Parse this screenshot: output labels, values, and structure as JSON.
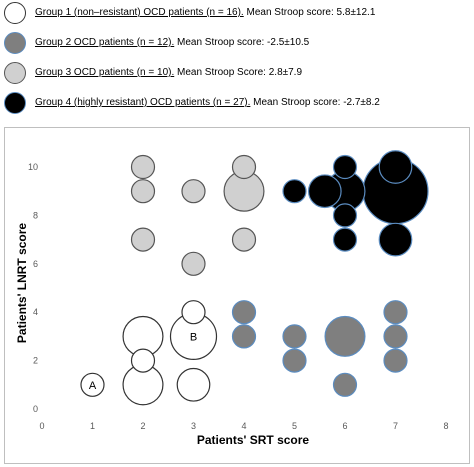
{
  "legend": [
    {
      "group": "Group 1 (non–resistant) OCD patients (n = 16).",
      "stat": " Mean Stroop score:  5.8±12.1",
      "fill": "#ffffff",
      "stroke": "#333333"
    },
    {
      "group": "Group 2 OCD patients (n = 12).",
      "stat": " Mean Stroop score: -2.5±10.5",
      "fill": "#7f7f7f",
      "stroke": "#5b8cc0"
    },
    {
      "group": "Group 3 OCD patients (n = 10).",
      "stat": " Mean Stroop Score: 2.8±7.9",
      "fill": "#d0d0d0",
      "stroke": "#555555"
    },
    {
      "group": "Group 4 (highly resistant) OCD patients (n = 27).",
      "stat": " Mean Stroop score: -2.7±8.2",
      "fill": "#000000",
      "stroke": "#5b8cc0"
    }
  ],
  "chart_data": {
    "type": "scatter",
    "subtype": "bubble",
    "xlabel": "Patients' SRT score",
    "ylabel": "Patients' LNRT score",
    "xlim": [
      0,
      8
    ],
    "ylim": [
      0,
      11
    ],
    "xticks": [
      "0",
      "1",
      "2",
      "3",
      "4",
      "5",
      "6",
      "7",
      "8"
    ],
    "yticks": [
      "0",
      "2",
      "4",
      "6",
      "8",
      "10"
    ],
    "grid": false,
    "annotations": [
      {
        "text": "A",
        "x": 1,
        "y": 1
      },
      {
        "text": "B",
        "x": 3,
        "y": 3
      }
    ],
    "series": [
      {
        "name": "Group 1",
        "fill": "#ffffff",
        "stroke": "#333333",
        "points": [
          {
            "x": 1,
            "y": 1,
            "size": 1
          },
          {
            "x": 2,
            "y": 1,
            "size": 3
          },
          {
            "x": 2,
            "y": 2,
            "size": 1
          },
          {
            "x": 2,
            "y": 3,
            "size": 3
          },
          {
            "x": 3,
            "y": 1,
            "size": 2
          },
          {
            "x": 3,
            "y": 3,
            "size": 4
          },
          {
            "x": 3,
            "y": 4,
            "size": 1
          }
        ]
      },
      {
        "name": "Group 2",
        "fill": "#7f7f7f",
        "stroke": "#5b8cc0",
        "points": [
          {
            "x": 4,
            "y": 3,
            "size": 1
          },
          {
            "x": 4,
            "y": 4,
            "size": 1
          },
          {
            "x": 5,
            "y": 2,
            "size": 1
          },
          {
            "x": 5,
            "y": 3,
            "size": 1
          },
          {
            "x": 6,
            "y": 1,
            "size": 1
          },
          {
            "x": 6,
            "y": 3,
            "size": 3
          },
          {
            "x": 7,
            "y": 2,
            "size": 1
          },
          {
            "x": 7,
            "y": 3,
            "size": 1
          },
          {
            "x": 7,
            "y": 4,
            "size": 1
          }
        ]
      },
      {
        "name": "Group 3",
        "fill": "#d0d0d0",
        "stroke": "#555555",
        "points": [
          {
            "x": 2,
            "y": 7,
            "size": 1
          },
          {
            "x": 2,
            "y": 9,
            "size": 1
          },
          {
            "x": 2,
            "y": 10,
            "size": 1
          },
          {
            "x": 3,
            "y": 6,
            "size": 1
          },
          {
            "x": 3,
            "y": 9,
            "size": 1
          },
          {
            "x": 4,
            "y": 7,
            "size": 1
          },
          {
            "x": 4,
            "y": 9,
            "size": 3
          },
          {
            "x": 4,
            "y": 10,
            "size": 1
          }
        ]
      },
      {
        "name": "Group 4",
        "fill": "#000000",
        "stroke": "#5b8cc0",
        "points": [
          {
            "x": 5,
            "y": 9,
            "size": 1
          },
          {
            "x": 5.6,
            "y": 9,
            "size": 2
          },
          {
            "x": 6,
            "y": 7,
            "size": 1
          },
          {
            "x": 6,
            "y": 8,
            "size": 1
          },
          {
            "x": 6,
            "y": 9,
            "size": 3
          },
          {
            "x": 6,
            "y": 10,
            "size": 1
          },
          {
            "x": 7,
            "y": 7,
            "size": 2
          },
          {
            "x": 7,
            "y": 9,
            "size": 8
          },
          {
            "x": 7,
            "y": 10,
            "size": 2
          }
        ]
      }
    ]
  }
}
